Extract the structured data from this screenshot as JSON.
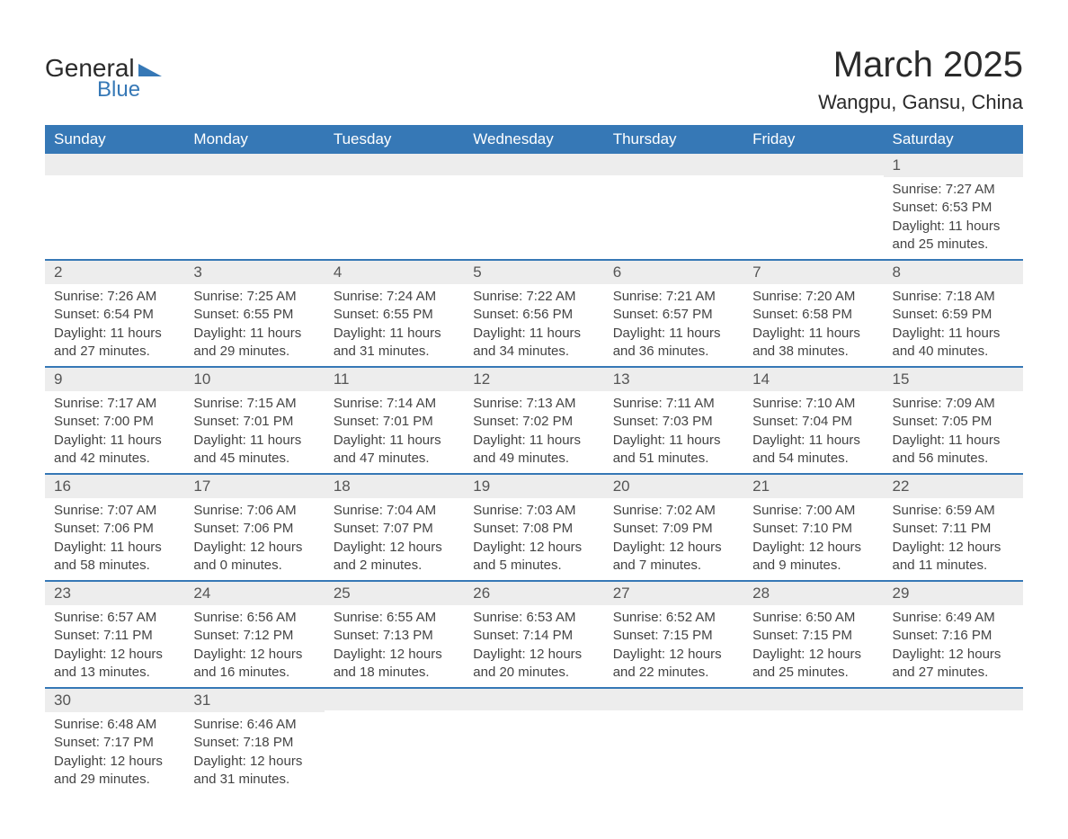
{
  "brand": {
    "part1": "General",
    "part2": "Blue"
  },
  "title": "March 2025",
  "location": "Wangpu, Gansu, China",
  "colors": {
    "header_bg": "#3678b6",
    "header_text": "#ffffff",
    "daynum_bg": "#ededed",
    "row_border": "#3678b6",
    "text": "#444444"
  },
  "typography": {
    "title_fontsize": 40,
    "location_fontsize": 22,
    "header_fontsize": 17,
    "cell_fontsize": 15
  },
  "calendar": {
    "type": "table",
    "columns": [
      "Sunday",
      "Monday",
      "Tuesday",
      "Wednesday",
      "Thursday",
      "Friday",
      "Saturday"
    ],
    "weeks": [
      [
        {
          "day": "",
          "sunrise": "",
          "sunset": "",
          "daylight": ""
        },
        {
          "day": "",
          "sunrise": "",
          "sunset": "",
          "daylight": ""
        },
        {
          "day": "",
          "sunrise": "",
          "sunset": "",
          "daylight": ""
        },
        {
          "day": "",
          "sunrise": "",
          "sunset": "",
          "daylight": ""
        },
        {
          "day": "",
          "sunrise": "",
          "sunset": "",
          "daylight": ""
        },
        {
          "day": "",
          "sunrise": "",
          "sunset": "",
          "daylight": ""
        },
        {
          "day": "1",
          "sunrise": "Sunrise: 7:27 AM",
          "sunset": "Sunset: 6:53 PM",
          "daylight": "Daylight: 11 hours and 25 minutes."
        }
      ],
      [
        {
          "day": "2",
          "sunrise": "Sunrise: 7:26 AM",
          "sunset": "Sunset: 6:54 PM",
          "daylight": "Daylight: 11 hours and 27 minutes."
        },
        {
          "day": "3",
          "sunrise": "Sunrise: 7:25 AM",
          "sunset": "Sunset: 6:55 PM",
          "daylight": "Daylight: 11 hours and 29 minutes."
        },
        {
          "day": "4",
          "sunrise": "Sunrise: 7:24 AM",
          "sunset": "Sunset: 6:55 PM",
          "daylight": "Daylight: 11 hours and 31 minutes."
        },
        {
          "day": "5",
          "sunrise": "Sunrise: 7:22 AM",
          "sunset": "Sunset: 6:56 PM",
          "daylight": "Daylight: 11 hours and 34 minutes."
        },
        {
          "day": "6",
          "sunrise": "Sunrise: 7:21 AM",
          "sunset": "Sunset: 6:57 PM",
          "daylight": "Daylight: 11 hours and 36 minutes."
        },
        {
          "day": "7",
          "sunrise": "Sunrise: 7:20 AM",
          "sunset": "Sunset: 6:58 PM",
          "daylight": "Daylight: 11 hours and 38 minutes."
        },
        {
          "day": "8",
          "sunrise": "Sunrise: 7:18 AM",
          "sunset": "Sunset: 6:59 PM",
          "daylight": "Daylight: 11 hours and 40 minutes."
        }
      ],
      [
        {
          "day": "9",
          "sunrise": "Sunrise: 7:17 AM",
          "sunset": "Sunset: 7:00 PM",
          "daylight": "Daylight: 11 hours and 42 minutes."
        },
        {
          "day": "10",
          "sunrise": "Sunrise: 7:15 AM",
          "sunset": "Sunset: 7:01 PM",
          "daylight": "Daylight: 11 hours and 45 minutes."
        },
        {
          "day": "11",
          "sunrise": "Sunrise: 7:14 AM",
          "sunset": "Sunset: 7:01 PM",
          "daylight": "Daylight: 11 hours and 47 minutes."
        },
        {
          "day": "12",
          "sunrise": "Sunrise: 7:13 AM",
          "sunset": "Sunset: 7:02 PM",
          "daylight": "Daylight: 11 hours and 49 minutes."
        },
        {
          "day": "13",
          "sunrise": "Sunrise: 7:11 AM",
          "sunset": "Sunset: 7:03 PM",
          "daylight": "Daylight: 11 hours and 51 minutes."
        },
        {
          "day": "14",
          "sunrise": "Sunrise: 7:10 AM",
          "sunset": "Sunset: 7:04 PM",
          "daylight": "Daylight: 11 hours and 54 minutes."
        },
        {
          "day": "15",
          "sunrise": "Sunrise: 7:09 AM",
          "sunset": "Sunset: 7:05 PM",
          "daylight": "Daylight: 11 hours and 56 minutes."
        }
      ],
      [
        {
          "day": "16",
          "sunrise": "Sunrise: 7:07 AM",
          "sunset": "Sunset: 7:06 PM",
          "daylight": "Daylight: 11 hours and 58 minutes."
        },
        {
          "day": "17",
          "sunrise": "Sunrise: 7:06 AM",
          "sunset": "Sunset: 7:06 PM",
          "daylight": "Daylight: 12 hours and 0 minutes."
        },
        {
          "day": "18",
          "sunrise": "Sunrise: 7:04 AM",
          "sunset": "Sunset: 7:07 PM",
          "daylight": "Daylight: 12 hours and 2 minutes."
        },
        {
          "day": "19",
          "sunrise": "Sunrise: 7:03 AM",
          "sunset": "Sunset: 7:08 PM",
          "daylight": "Daylight: 12 hours and 5 minutes."
        },
        {
          "day": "20",
          "sunrise": "Sunrise: 7:02 AM",
          "sunset": "Sunset: 7:09 PM",
          "daylight": "Daylight: 12 hours and 7 minutes."
        },
        {
          "day": "21",
          "sunrise": "Sunrise: 7:00 AM",
          "sunset": "Sunset: 7:10 PM",
          "daylight": "Daylight: 12 hours and 9 minutes."
        },
        {
          "day": "22",
          "sunrise": "Sunrise: 6:59 AM",
          "sunset": "Sunset: 7:11 PM",
          "daylight": "Daylight: 12 hours and 11 minutes."
        }
      ],
      [
        {
          "day": "23",
          "sunrise": "Sunrise: 6:57 AM",
          "sunset": "Sunset: 7:11 PM",
          "daylight": "Daylight: 12 hours and 13 minutes."
        },
        {
          "day": "24",
          "sunrise": "Sunrise: 6:56 AM",
          "sunset": "Sunset: 7:12 PM",
          "daylight": "Daylight: 12 hours and 16 minutes."
        },
        {
          "day": "25",
          "sunrise": "Sunrise: 6:55 AM",
          "sunset": "Sunset: 7:13 PM",
          "daylight": "Daylight: 12 hours and 18 minutes."
        },
        {
          "day": "26",
          "sunrise": "Sunrise: 6:53 AM",
          "sunset": "Sunset: 7:14 PM",
          "daylight": "Daylight: 12 hours and 20 minutes."
        },
        {
          "day": "27",
          "sunrise": "Sunrise: 6:52 AM",
          "sunset": "Sunset: 7:15 PM",
          "daylight": "Daylight: 12 hours and 22 minutes."
        },
        {
          "day": "28",
          "sunrise": "Sunrise: 6:50 AM",
          "sunset": "Sunset: 7:15 PM",
          "daylight": "Daylight: 12 hours and 25 minutes."
        },
        {
          "day": "29",
          "sunrise": "Sunrise: 6:49 AM",
          "sunset": "Sunset: 7:16 PM",
          "daylight": "Daylight: 12 hours and 27 minutes."
        }
      ],
      [
        {
          "day": "30",
          "sunrise": "Sunrise: 6:48 AM",
          "sunset": "Sunset: 7:17 PM",
          "daylight": "Daylight: 12 hours and 29 minutes."
        },
        {
          "day": "31",
          "sunrise": "Sunrise: 6:46 AM",
          "sunset": "Sunset: 7:18 PM",
          "daylight": "Daylight: 12 hours and 31 minutes."
        },
        {
          "day": "",
          "sunrise": "",
          "sunset": "",
          "daylight": ""
        },
        {
          "day": "",
          "sunrise": "",
          "sunset": "",
          "daylight": ""
        },
        {
          "day": "",
          "sunrise": "",
          "sunset": "",
          "daylight": ""
        },
        {
          "day": "",
          "sunrise": "",
          "sunset": "",
          "daylight": ""
        },
        {
          "day": "",
          "sunrise": "",
          "sunset": "",
          "daylight": ""
        }
      ]
    ]
  }
}
